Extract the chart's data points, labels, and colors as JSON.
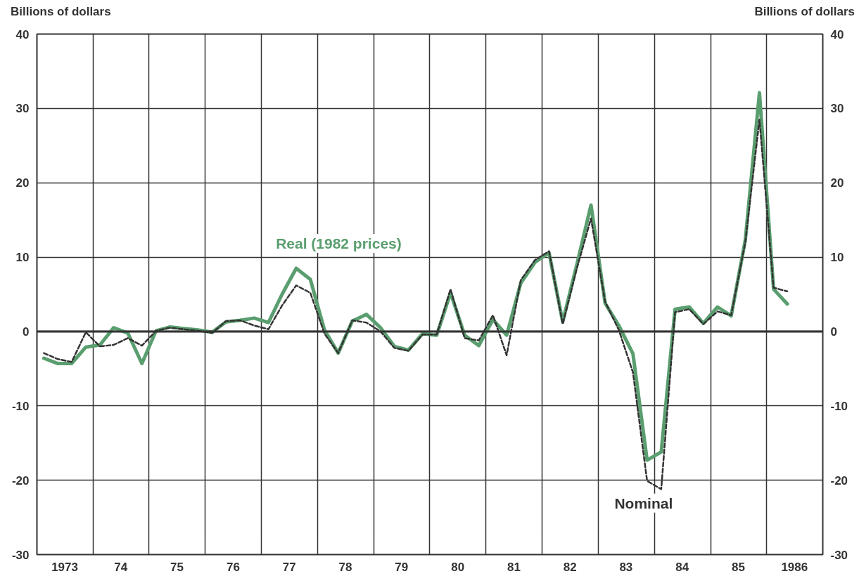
{
  "chart_data": {
    "type": "line",
    "ylabel": "Billions of dollars",
    "y2label": "Billions of dollars",
    "x": [
      "1973-02-15",
      "1973-05-15",
      "1973-08-15",
      "1973-11-15",
      "1974-02-15",
      "1974-05-15",
      "1974-08-15",
      "1974-11-15",
      "1975-02-15",
      "1975-05-15",
      "1975-08-15",
      "1975-11-15",
      "1976-02-15",
      "1976-05-15",
      "1976-08-15",
      "1976-11-15",
      "1977-02-15",
      "1977-05-15",
      "1977-08-15",
      "1977-11-15",
      "1978-02-15",
      "1978-05-15",
      "1978-08-15",
      "1978-11-15",
      "1979-02-15",
      "1979-05-15",
      "1979-08-15",
      "1979-11-15",
      "1980-02-15",
      "1980-05-15",
      "1980-08-15",
      "1980-11-15",
      "1981-02-15",
      "1981-05-15",
      "1981-08-15",
      "1981-11-15",
      "1982-02-15",
      "1982-05-15",
      "1982-08-15",
      "1982-11-15",
      "1983-02-15",
      "1983-05-15",
      "1983-08-15",
      "1983-11-15",
      "1984-02-15",
      "1984-05-15",
      "1984-08-15",
      "1984-11-15",
      "1985-02-15",
      "1985-05-15",
      "1985-08-15",
      "1985-11-15",
      "1986-02-15",
      "1986-05-15"
    ],
    "series": [
      {
        "name": "Real (1982 prices)",
        "color": "#5a9e6f",
        "line_style": "solid",
        "values": [
          -3.6,
          -4.3,
          -4.3,
          -2.1,
          -1.8,
          0.5,
          -0.2,
          -4.3,
          0.1,
          0.6,
          0.4,
          0.2,
          -0.1,
          1.3,
          1.5,
          1.8,
          1.2,
          5.0,
          8.5,
          7.0,
          0.2,
          -2.9,
          1.4,
          2.3,
          0.5,
          -2.0,
          -2.5,
          -0.3,
          -0.5,
          5.2,
          -0.5,
          -1.9,
          1.6,
          -0.5,
          6.5,
          9.3,
          10.6,
          1.3,
          9.0,
          17.0,
          3.8,
          0.8,
          -3.0,
          -17.3,
          -16.2,
          3.0,
          3.3,
          1.1,
          3.3,
          2.1,
          12.3,
          32.1,
          5.7,
          3.7
        ]
      },
      {
        "name": "Nominal",
        "color": "#333333",
        "line_style": "dashed",
        "values": [
          -2.9,
          -3.7,
          -4.1,
          -0.1,
          -2.0,
          -1.8,
          -0.9,
          -1.9,
          0.1,
          0.5,
          0.3,
          0.1,
          -0.2,
          1.4,
          1.5,
          0.8,
          0.3,
          3.5,
          6.2,
          5.2,
          -0.3,
          -2.9,
          1.5,
          1.2,
          0.0,
          -2.2,
          -2.6,
          -0.4,
          -0.4,
          5.7,
          -0.9,
          -1.2,
          2.2,
          -3.2,
          6.9,
          9.6,
          10.8,
          1.0,
          8.5,
          15.2,
          4.0,
          0.2,
          -5.5,
          -20.1,
          -21.2,
          2.6,
          3.0,
          1.0,
          2.7,
          2.2,
          12.0,
          28.5,
          5.9,
          5.4
        ]
      }
    ],
    "xlim": [
      "1973-01-01",
      "1987-01-01"
    ],
    "xticks": [
      {
        "value": "1973-01-01",
        "label": null
      },
      {
        "value": "1973-07-01",
        "label": "1973"
      },
      {
        "value": "1974-01-01",
        "label": null
      },
      {
        "value": "1974-07-01",
        "label": "74"
      },
      {
        "value": "1975-01-01",
        "label": null
      },
      {
        "value": "1975-07-01",
        "label": "75"
      },
      {
        "value": "1976-01-01",
        "label": null
      },
      {
        "value": "1976-07-01",
        "label": "76"
      },
      {
        "value": "1977-01-01",
        "label": null
      },
      {
        "value": "1977-07-01",
        "label": "77"
      },
      {
        "value": "1978-01-01",
        "label": null
      },
      {
        "value": "1978-07-01",
        "label": "78"
      },
      {
        "value": "1979-01-01",
        "label": null
      },
      {
        "value": "1979-07-01",
        "label": "79"
      },
      {
        "value": "1980-01-01",
        "label": null
      },
      {
        "value": "1980-07-01",
        "label": "80"
      },
      {
        "value": "1981-01-01",
        "label": null
      },
      {
        "value": "1981-07-01",
        "label": "81"
      },
      {
        "value": "1982-01-01",
        "label": null
      },
      {
        "value": "1982-07-01",
        "label": "82"
      },
      {
        "value": "1983-01-01",
        "label": null
      },
      {
        "value": "1983-07-01",
        "label": "83"
      },
      {
        "value": "1984-01-01",
        "label": null
      },
      {
        "value": "1984-07-01",
        "label": "84"
      },
      {
        "value": "1985-01-01",
        "label": null
      },
      {
        "value": "1985-07-01",
        "label": "85"
      },
      {
        "value": "1986-01-01",
        "label": null
      },
      {
        "value": "1986-07-01",
        "label": "1986"
      },
      {
        "value": "1987-01-01",
        "label": null
      }
    ],
    "ylim": [
      -30,
      40
    ],
    "yticks": [
      -30,
      -20,
      -10,
      0,
      10,
      20,
      30,
      40
    ],
    "y2lim": [
      -30,
      40
    ],
    "y2ticks": [
      -30,
      -20,
      -10,
      0,
      10,
      20,
      30,
      40
    ],
    "ref_lines": [
      {
        "axis": "y",
        "value": 0,
        "color": "#333333"
      }
    ],
    "grid": true,
    "legend": false,
    "marker": "none"
  }
}
